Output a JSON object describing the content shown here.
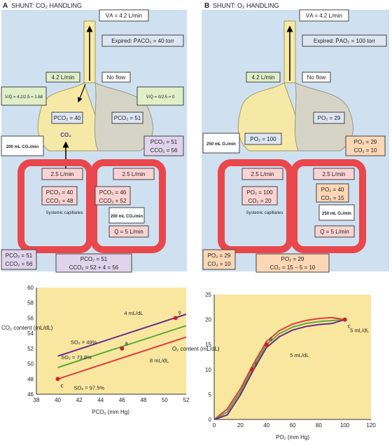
{
  "colors": {
    "bg_top": "#cfe0f0",
    "bg_chart": "#f9e7a0",
    "lung_yellow": "#f6e9a8",
    "lung_gray": "#d6d4c6",
    "vessel_red": "#e9474c",
    "vessel_pink": "#f4b6b6",
    "box_green": "#dff0c8",
    "box_blue": "#dde6f3",
    "box_purple": "#e0d4ec",
    "box_orange": "#fbd7b6",
    "purple_text": "#6a2a8c",
    "orange_text": "#d9781d",
    "line_purple": "#6a2a8c",
    "line_green": "#5aa83a",
    "line_red": "#e23a3e"
  },
  "panel_a": {
    "letter": "A",
    "title": "SHUNT: CO₂ HANDLING",
    "va": "V̇A = 4.2 L/min",
    "expired": "Expired: P̄ACO₂ = 40 torr",
    "left_flow": "4.2 L/min",
    "no_flow": "No flow",
    "vq_left": "V̇/Q̇ = 4.2/2.5 = 1.68",
    "vq_right": "V̇/Q̇ = 0/2.5 = 0",
    "pco2_left": "PCO₂ = 40",
    "pco2_right": "PCO₂ = 51",
    "gas": "CO₂",
    "removed": "200 mL CO₂/min",
    "right_top_p": "PCO₂ = 51",
    "right_top_c": "CCO₂ = 56",
    "flow_left": "2.5 L/min",
    "flow_right": "2.5 L/min",
    "mid_left_p": "PCO₂ = 40",
    "mid_left_c": "CCO₂ = 48",
    "mid_right_p": "PCO₂ = 46",
    "mid_right_c": "CCO₂ = 52",
    "systemic": "Systemic capillaries",
    "added": "200 mL CO₂/min",
    "q_total": "Q̇ = 5 L/min",
    "venous_p": "PCO₂ = 51",
    "venous_c": "CCO₂ = 56",
    "art_p": "PCO₂ = 51",
    "art_c": "CCO₂ = 52 + 4 = 56"
  },
  "panel_b": {
    "letter": "B",
    "title": "SHUNT: O₂ HANDLING",
    "va": "V̇A = 4.2 L/min",
    "expired": "Expired: P̄AO₂ = 100 torr",
    "left_flow": "4.2 L/min",
    "no_flow": "No flow",
    "po2_left": "PO₂ = 100",
    "po2_right": "PO₂ = 29",
    "added": "250 mL O₂/min",
    "right_top_p": "PO₂ = 29",
    "right_top_c": "CO₂ = 10",
    "flow_left": "2.5 L/min",
    "flow_right": "2.5 L/min",
    "mid_left_p": "PO₂ = 100",
    "mid_left_c": "CO₂ = 20",
    "mid_right_p": "PO₂ = 40",
    "mid_right_c": "CO₂ = 15",
    "systemic": "Systemic capillaries",
    "consumed": "250 mL O₂/min",
    "q_total": "Q̇ = 5 L/min",
    "venous_p": "PO₂ = 29",
    "venous_c": "CO₂ = 10",
    "art_p": "PO₂ = 29",
    "art_c": "CO₂ = 15 − 5 = 10"
  },
  "chart_data": [
    {
      "type": "line",
      "ylabel": "CO₂ content (mL/dL)",
      "xlabel": "PCO₂ (mm Hg)",
      "xlim": [
        38,
        52
      ],
      "ylim": [
        46,
        60
      ],
      "xticks": [
        38,
        40,
        42,
        44,
        46,
        48,
        50,
        52
      ],
      "yticks": [
        46,
        48,
        50,
        52,
        54,
        56,
        58,
        60
      ],
      "series": [
        {
          "name": "SO₂ = 49%",
          "x": [
            40,
            52
          ],
          "y": [
            51.0,
            56.5
          ]
        },
        {
          "name": "SO₂ = 73.8%",
          "x": [
            40,
            52
          ],
          "y": [
            49.5,
            55.0
          ]
        },
        {
          "name": "SO₂ = 97.5%",
          "x": [
            40,
            52
          ],
          "y": [
            48.0,
            53.5
          ]
        }
      ],
      "points": [
        {
          "label": "c",
          "x": 40,
          "y": 48
        },
        {
          "label": "a",
          "x": 46,
          "y": 52
        },
        {
          "label": "v̄",
          "x": 51,
          "y": 56
        }
      ],
      "annotations": [
        "4 mL/dL",
        "8 mL/dL"
      ]
    },
    {
      "type": "line",
      "ylabel": "O₂ content (mL/dL)",
      "xlabel": "PO₂ (mm Hg)",
      "xlim": [
        0,
        120
      ],
      "ylim": [
        0,
        25
      ],
      "xticks": [
        0,
        20,
        40,
        60,
        80,
        100,
        120
      ],
      "yticks": [
        0,
        5,
        10,
        15,
        20,
        25
      ],
      "series": [
        {
          "x": [
            0,
            10,
            20,
            30,
            40,
            50,
            60,
            70,
            80,
            90,
            100
          ],
          "y": [
            0,
            1.5,
            5.5,
            10.5,
            15,
            17.2,
            18.5,
            19.2,
            19.6,
            19.8,
            20
          ]
        }
      ],
      "points": [
        {
          "label": "v̄",
          "x": 29,
          "y": 10
        },
        {
          "label": "a",
          "x": 40,
          "y": 15
        },
        {
          "label": "c",
          "x": 100,
          "y": 20
        }
      ],
      "annotations": [
        "5 mL/dL",
        "5 mL/dL"
      ]
    }
  ]
}
